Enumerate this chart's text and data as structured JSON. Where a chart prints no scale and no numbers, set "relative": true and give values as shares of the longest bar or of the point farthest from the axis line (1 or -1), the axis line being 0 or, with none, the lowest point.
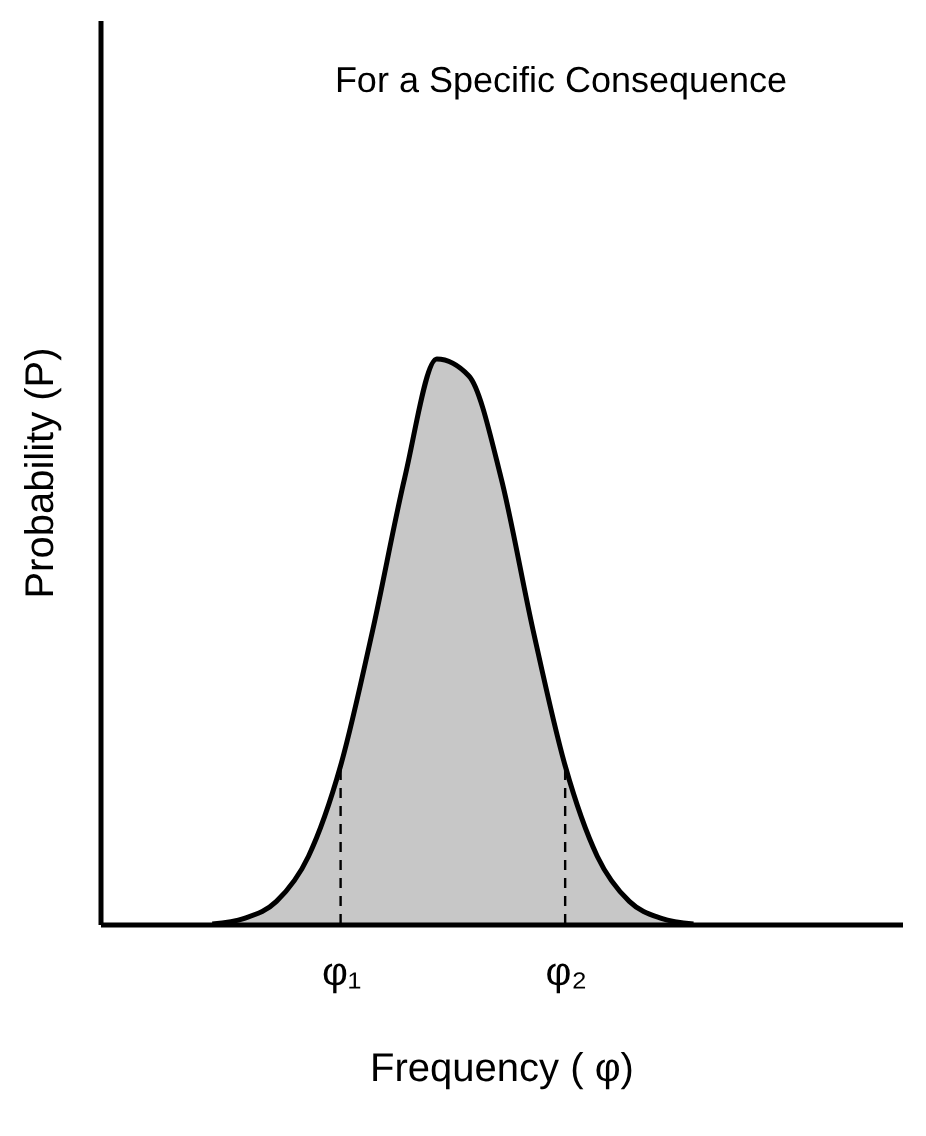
{
  "chart_data": {
    "type": "area",
    "title": "For a Specific Consequence",
    "xlabel": "Frequency  ( φ)",
    "ylabel": "Probability  (P)",
    "relative": true,
    "categories": [
      null,
      null,
      null,
      null,
      null,
      null,
      null,
      "φ₁",
      null,
      null,
      null,
      null,
      null,
      null,
      "φ₂",
      null,
      null,
      null,
      null,
      null,
      null,
      null,
      null,
      null,
      null
    ],
    "series": [
      {
        "color": "#000000",
        "values": [
          null,
          null,
          null,
          0,
          0.01,
          0.04,
          0.12,
          0.28,
          0.52,
          0.79,
          1,
          0.97,
          0.79,
          0.52,
          0.28,
          0.12,
          0.04,
          0.01,
          0,
          null,
          null,
          null,
          null,
          null,
          null
        ]
      }
    ],
    "ref_lines": [
      {
        "axis": "x",
        "value": "φ₁",
        "line_style": "dashed"
      },
      {
        "axis": "x",
        "value": "φ₂",
        "line_style": "dashed"
      }
    ],
    "grid": false
  }
}
